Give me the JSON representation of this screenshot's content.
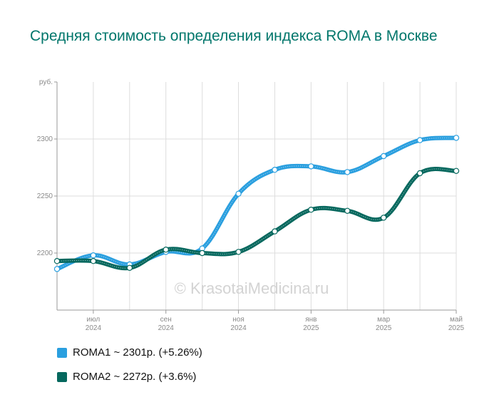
{
  "title": "Средняя стоимость определения индекса ROMA в Москве",
  "watermark": "© KrasotaiMedicina.ru",
  "colors": {
    "roma1": "#2a9fdf",
    "roma2": "#06685e",
    "title": "#00766b",
    "grid": "#dddddd",
    "axis": "#999999"
  },
  "legend": [
    {
      "text": "ROMA1 ~ 2301р. (+5.26%)",
      "color": "#2a9fdf"
    },
    {
      "text": "ROMA2 ~ 2272р. (+3.6%)",
      "color": "#06685e"
    }
  ],
  "chart_data": {
    "type": "line",
    "title": "Средняя стоимость определения индекса ROMA в Москве",
    "ylabel": "руб.",
    "ylim": [
      2150,
      2350
    ],
    "yticks": [
      2200,
      2250,
      2300
    ],
    "x": [
      "2024-06",
      "2024-07",
      "2024-08",
      "2024-09",
      "2024-10",
      "2024-11",
      "2024-12",
      "2025-01",
      "2025-02",
      "2025-03",
      "2025-04",
      "2025-05"
    ],
    "xtick_labels": [
      {
        "month": "июл",
        "year": "2024",
        "index": 1
      },
      {
        "month": "сен",
        "year": "2024",
        "index": 3
      },
      {
        "month": "ноя",
        "year": "2024",
        "index": 5
      },
      {
        "month": "янв",
        "year": "2025",
        "index": 7
      },
      {
        "month": "мар",
        "year": "2025",
        "index": 9
      },
      {
        "month": "май",
        "year": "2025",
        "index": 11
      }
    ],
    "series": [
      {
        "name": "ROMA1",
        "color": "#2a9fdf",
        "values": [
          2186,
          2198,
          2190,
          2201,
          2204,
          2252,
          2273,
          2276,
          2271,
          2285,
          2299,
          2301
        ]
      },
      {
        "name": "ROMA2",
        "color": "#06685e",
        "values": [
          2193,
          2193,
          2187,
          2203,
          2200,
          2201,
          2219,
          2238,
          2237,
          2231,
          2270,
          2272
        ]
      }
    ],
    "grid": true
  }
}
